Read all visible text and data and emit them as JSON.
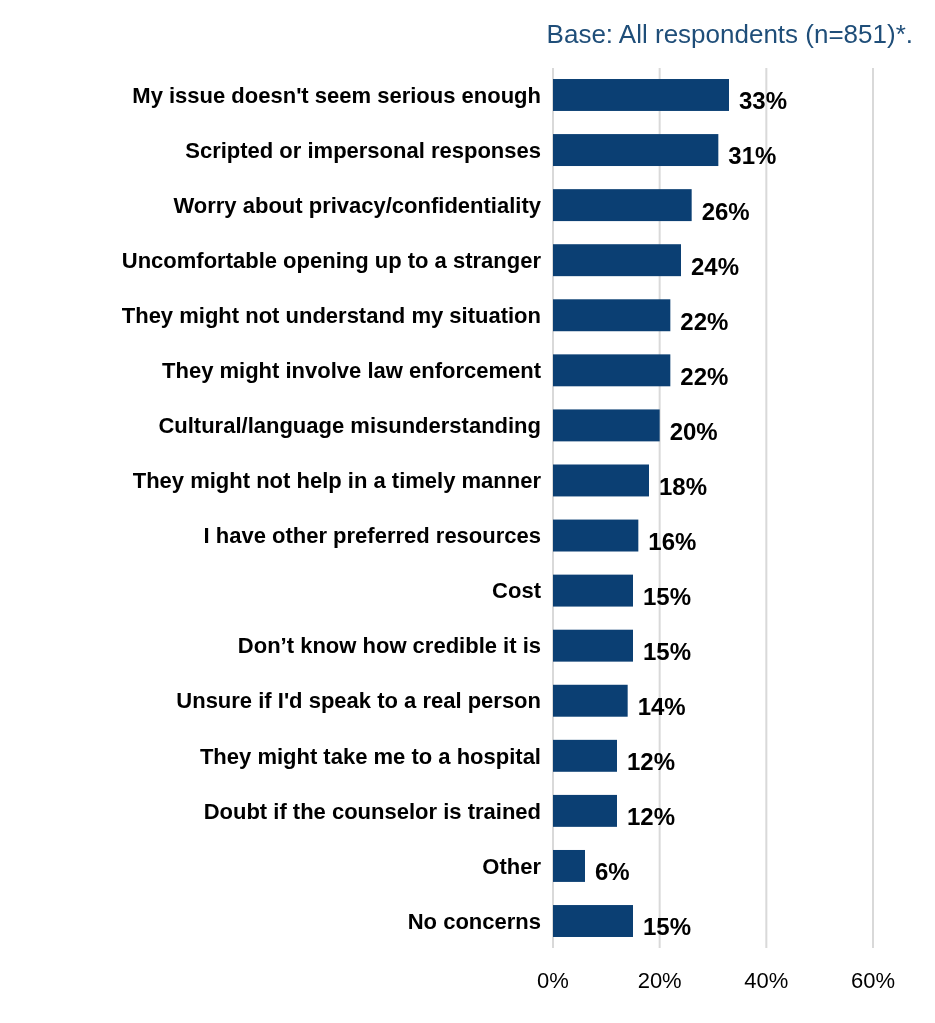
{
  "chart_data": {
    "type": "bar",
    "orientation": "horizontal",
    "subtitle": "Base: All respondents (n=851)*.",
    "categories": [
      "My issue doesn't seem serious enough",
      "Scripted or impersonal responses",
      "Worry about privacy/confidentiality",
      "Uncomfortable opening up to a stranger",
      "They might not understand my situation",
      "They might involve law enforcement",
      "Cultural/language misunderstanding",
      "They might not help in a timely manner",
      "I have other preferred resources",
      "Cost",
      "Don’t know how credible it is",
      "Unsure if I'd speak to a real person",
      "They might take me to a hospital",
      "Doubt if the counselor is trained",
      "Other",
      "No concerns"
    ],
    "values": [
      33,
      31,
      26,
      24,
      22,
      22,
      20,
      18,
      16,
      15,
      15,
      14,
      12,
      12,
      6,
      15
    ],
    "value_labels": [
      "33%",
      "31%",
      "26%",
      "24%",
      "22%",
      "22%",
      "20%",
      "18%",
      "16%",
      "15%",
      "15%",
      "14%",
      "12%",
      "12%",
      "6%",
      "15%"
    ],
    "color": "#0b3f73",
    "xlim": [
      0,
      60
    ],
    "xticks": [
      {
        "value": 0,
        "label": "0%"
      },
      {
        "value": 20,
        "label": "20%"
      },
      {
        "value": 40,
        "label": "40%"
      },
      {
        "value": 60,
        "label": "60%"
      }
    ],
    "grid": "x"
  }
}
